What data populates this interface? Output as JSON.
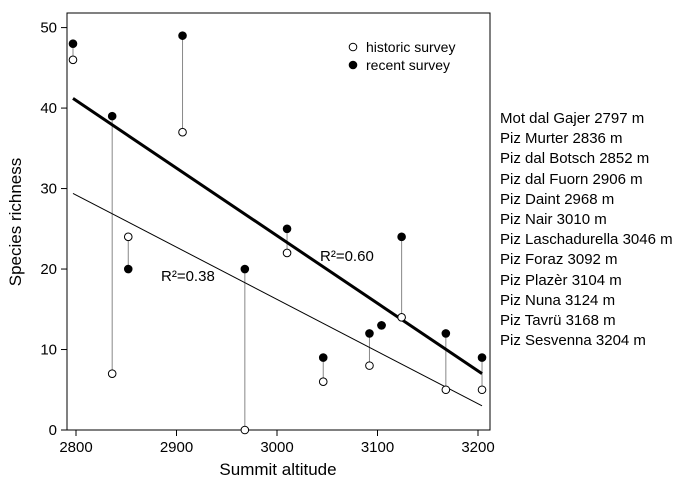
{
  "chart_data": {
    "type": "scatter",
    "xlabel": "Summit altitude",
    "ylabel": "Species richness",
    "xlim": [
      2790,
      3215
    ],
    "ylim": [
      0,
      50
    ],
    "xticks": [
      2800,
      2900,
      3000,
      3100,
      3200
    ],
    "yticks": [
      0,
      10,
      20,
      30,
      40,
      50
    ],
    "grid": false,
    "legend_position": "top-right",
    "series": [
      {
        "name": "historic survey",
        "marker": "open-circle",
        "points": [
          {
            "x": 2797,
            "y": 46
          },
          {
            "x": 2836,
            "y": 7
          },
          {
            "x": 2852,
            "y": 24
          },
          {
            "x": 2906,
            "y": 37
          },
          {
            "x": 2968,
            "y": 0
          },
          {
            "x": 3010,
            "y": 22
          },
          {
            "x": 3046,
            "y": 6
          },
          {
            "x": 3092,
            "y": 8
          },
          {
            "x": 3104,
            "y": 13
          },
          {
            "x": 3124,
            "y": 14
          },
          {
            "x": 3168,
            "y": 5
          },
          {
            "x": 3204,
            "y": 5
          }
        ]
      },
      {
        "name": "recent survey",
        "marker": "filled-circle",
        "points": [
          {
            "x": 2797,
            "y": 48
          },
          {
            "x": 2836,
            "y": 39
          },
          {
            "x": 2852,
            "y": 20
          },
          {
            "x": 2906,
            "y": 49
          },
          {
            "x": 2968,
            "y": 20
          },
          {
            "x": 3010,
            "y": 25
          },
          {
            "x": 3046,
            "y": 9
          },
          {
            "x": 3092,
            "y": 12
          },
          {
            "x": 3104,
            "y": 13
          },
          {
            "x": 3124,
            "y": 24
          },
          {
            "x": 3168,
            "y": 12
          },
          {
            "x": 3204,
            "y": 9
          }
        ]
      }
    ],
    "regressions": [
      {
        "series": "historic survey",
        "label": "R²=0.38",
        "x": [
          2797,
          3204
        ],
        "y": [
          29.4,
          3.0
        ],
        "stroke": "thin"
      },
      {
        "series": "recent survey",
        "label": "R²=0.60",
        "x": [
          2797,
          3204
        ],
        "y": [
          41.2,
          7.0
        ],
        "stroke": "thick"
      }
    ],
    "annotations": [
      "Mot dal Gajer 2797 m",
      "Piz Murter 2836 m",
      "Piz dal Botsch 2852 m",
      "Piz dal Fuorn 2906 m",
      "Piz Daint 2968 m",
      "Piz Nair 3010 m",
      "Piz Laschadurella 3046 m",
      "Piz Foraz 3092 m",
      "Piz Plazèr 3104 m",
      "Piz Nuna 3124 m",
      "Piz Tavrü 3168 m",
      "Piz Sesvenna 3204 m"
    ],
    "colors": {
      "marker": "#000000",
      "connector": "#888888",
      "axis": "#000000"
    }
  }
}
